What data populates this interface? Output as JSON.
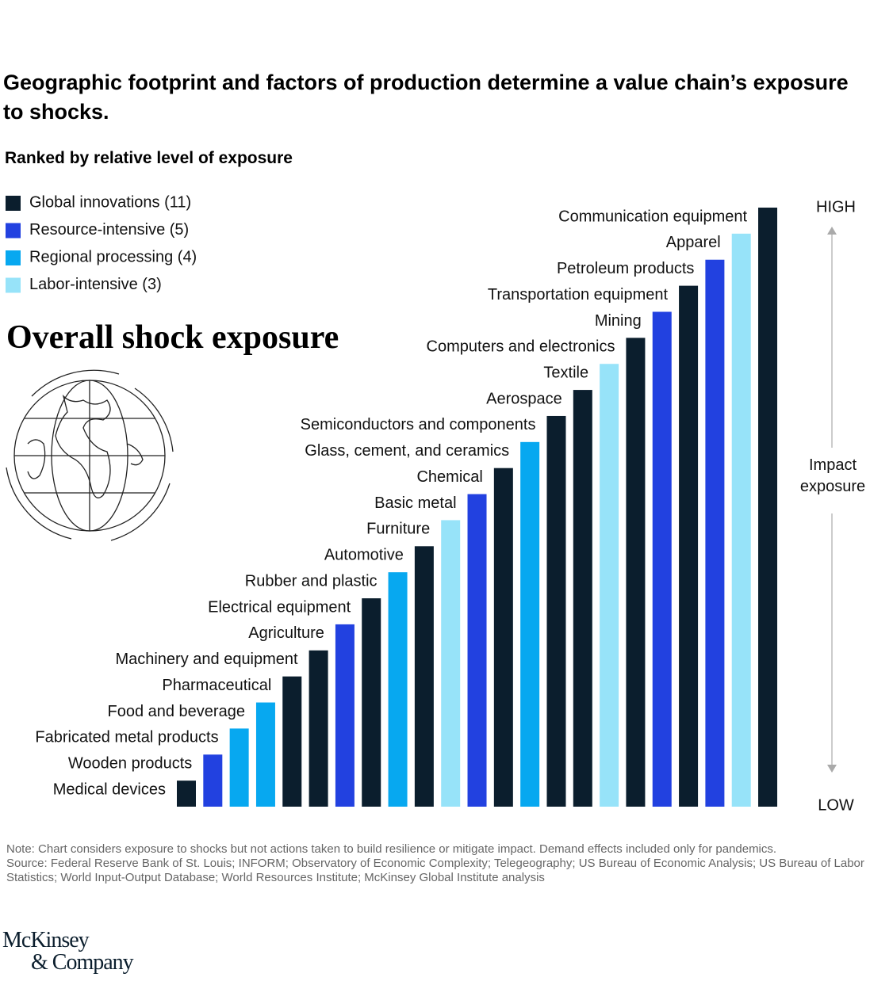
{
  "chart_data": {
    "type": "bar",
    "title": "Geographic footprint and factors of production determine a value chain’s exposure to shocks.",
    "subtitle": "Ranked by relative level of exposure",
    "heading": "Overall shock exposure",
    "axis_high": "HIGH",
    "axis_low": "LOW",
    "axis_label": "Impact exposure",
    "categories": [
      "Medical devices",
      "Wooden products",
      "Fabricated metal products",
      "Food and beverage",
      "Pharmaceutical",
      "Machinery and equipment",
      "Agriculture",
      "Electrical equipment",
      "Rubber and plastic",
      "Automotive",
      "Furniture",
      "Basic metal",
      "Chemical",
      "Glass, cement, and ceramics",
      "Semiconductors and components",
      "Aerospace",
      "Textile",
      "Computers and electronics",
      "Mining",
      "Transportation equipment",
      "Petroleum products",
      "Apparel",
      "Communication equipment"
    ],
    "ylim": [
      0,
      23
    ],
    "series": [
      {
        "name": "Global innovations (11)",
        "color": "#0b1e2d",
        "values": [
          1,
          null,
          null,
          null,
          5,
          6,
          null,
          8,
          null,
          10,
          null,
          null,
          13,
          null,
          15,
          16,
          null,
          18,
          null,
          20,
          null,
          null,
          23
        ]
      },
      {
        "name": "Resource-intensive (5)",
        "color": "#2241e0",
        "values": [
          null,
          2,
          null,
          null,
          null,
          null,
          7,
          null,
          null,
          null,
          null,
          12,
          null,
          null,
          null,
          null,
          null,
          null,
          19,
          null,
          21,
          null,
          null
        ]
      },
      {
        "name": "Regional processing (4)",
        "color": "#07a8f0",
        "values": [
          null,
          null,
          3,
          4,
          null,
          null,
          null,
          null,
          9,
          null,
          null,
          null,
          null,
          14,
          null,
          null,
          null,
          null,
          null,
          null,
          null,
          null,
          null
        ]
      },
      {
        "name": "Labor-intensive (3)",
        "color": "#97e3f9",
        "values": [
          null,
          null,
          null,
          null,
          null,
          null,
          null,
          null,
          null,
          null,
          11,
          null,
          null,
          null,
          null,
          null,
          17,
          null,
          null,
          null,
          null,
          22,
          null
        ]
      }
    ]
  },
  "note": "Note: Chart considers exposure to shocks but not actions taken to build resilience or mitigate impact. Demand effects included only for pandemics.",
  "source": "Source: Federal Reserve Bank of St. Louis; INFORM; Observatory of Economic Complexity; Telegeography; US Bureau of Economic Analysis; US Bureau of Labor Statistics; World Input-Output Database; World Resources Institute; McKinsey Global Institute analysis",
  "logo": [
    "McKinsey",
    "& Company"
  ]
}
